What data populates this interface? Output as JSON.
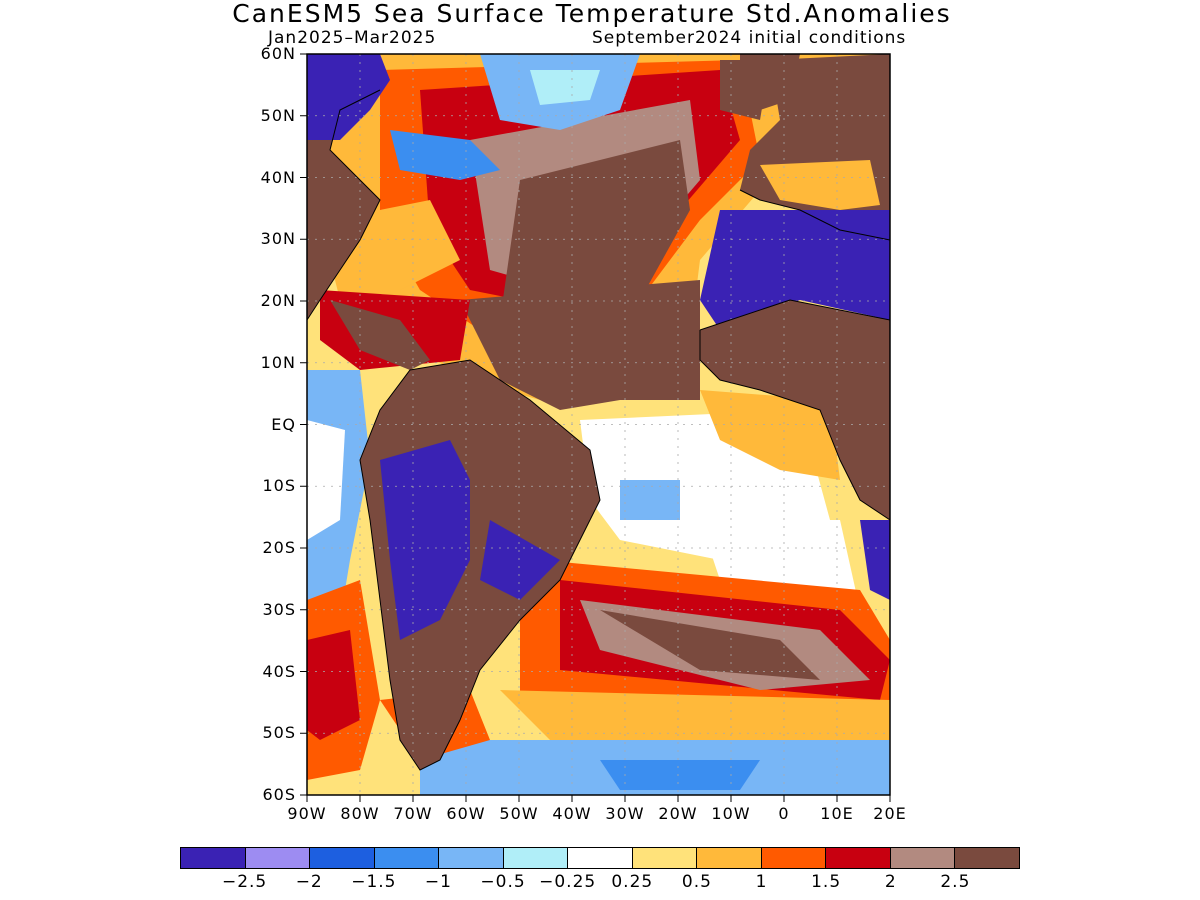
{
  "title": "CanESM5 Sea Surface Temperature Std.Anomalies",
  "subtitle_left": "Jan2025–Mar2025",
  "subtitle_right": "September2024 initial conditions",
  "lat_labels": [
    "60N",
    "50N",
    "40N",
    "30N",
    "20N",
    "10N",
    "EQ",
    "10S",
    "20S",
    "30S",
    "40S",
    "50S",
    "60S"
  ],
  "lon_labels": [
    "90W",
    "80W",
    "70W",
    "60W",
    "50W",
    "40W",
    "30W",
    "20W",
    "10W",
    "0",
    "10E",
    "20E"
  ],
  "colorbar": {
    "colors": [
      "#3a22b4",
      "#9d8cf2",
      "#1d5fe0",
      "#3b8ef0",
      "#78b6f6",
      "#b0eef8",
      "#ffffff",
      "#ffe27a",
      "#ffb93a",
      "#ff5a00",
      "#c80010",
      "#b28a80",
      "#7a4a3e"
    ],
    "labels": [
      "−2.5",
      "−2",
      "−1.5",
      "−1",
      "−0.5",
      "−0.25",
      "0.25",
      "0.5",
      "1",
      "1.5",
      "2",
      "2.5"
    ]
  },
  "map": {
    "domain": {
      "lon": [
        -90,
        20
      ],
      "lat": [
        -60,
        60
      ]
    },
    "land_color": "#7a4a3e"
  }
}
